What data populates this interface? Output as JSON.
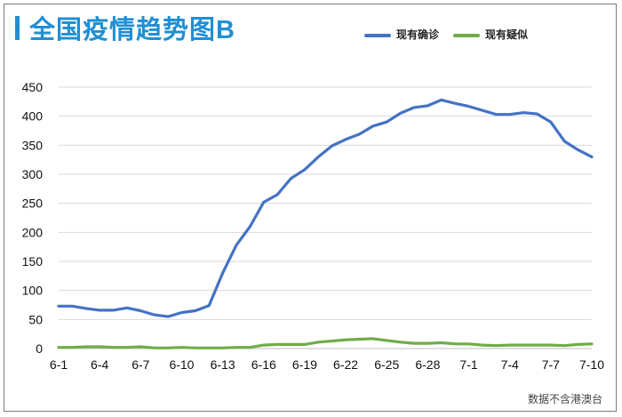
{
  "title": "全国疫情趋势图B",
  "footnote": "数据不含港澳台",
  "colors": {
    "confirmed": "#4472c4",
    "suspected": "#70ad47",
    "title": "#1f8fd4"
  },
  "chart_data": {
    "type": "line",
    "title": "全国疫情趋势图B",
    "xlabel": "",
    "ylabel": "",
    "ylim": [
      0,
      450
    ],
    "yticks": [
      0,
      50,
      100,
      150,
      200,
      250,
      300,
      350,
      400,
      450
    ],
    "grid": true,
    "legend_position": "top-right",
    "x_tick_labels": [
      "6-1",
      "6-4",
      "6-7",
      "6-10",
      "6-13",
      "6-16",
      "6-19",
      "6-22",
      "6-25",
      "6-28",
      "7-1",
      "7-4",
      "7-7",
      "7-10"
    ],
    "x": [
      "6-1",
      "6-2",
      "6-3",
      "6-4",
      "6-5",
      "6-6",
      "6-7",
      "6-8",
      "6-9",
      "6-10",
      "6-11",
      "6-12",
      "6-13",
      "6-14",
      "6-15",
      "6-16",
      "6-17",
      "6-18",
      "6-19",
      "6-20",
      "6-21",
      "6-22",
      "6-23",
      "6-24",
      "6-25",
      "6-26",
      "6-27",
      "6-28",
      "6-29",
      "6-30",
      "7-1",
      "7-2",
      "7-3",
      "7-4",
      "7-5",
      "7-6",
      "7-7",
      "7-8",
      "7-9",
      "7-10"
    ],
    "series": [
      {
        "name": "现有确诊",
        "values": [
          73,
          73,
          69,
          66,
          66,
          70,
          65,
          58,
          55,
          62,
          65,
          74,
          130,
          178,
          210,
          252,
          265,
          293,
          308,
          330,
          349,
          360,
          369,
          383,
          390,
          405,
          415,
          418,
          428,
          422,
          417,
          410,
          403,
          403,
          406,
          404,
          390,
          357,
          342,
          330
        ]
      },
      {
        "name": "现有疑似",
        "values": [
          2,
          2,
          3,
          3,
          2,
          2,
          3,
          1,
          1,
          2,
          1,
          1,
          1,
          2,
          2,
          6,
          7,
          7,
          7,
          11,
          13,
          15,
          16,
          17,
          14,
          11,
          9,
          9,
          10,
          8,
          8,
          6,
          5,
          6,
          6,
          6,
          6,
          5,
          7,
          8
        ]
      }
    ]
  }
}
